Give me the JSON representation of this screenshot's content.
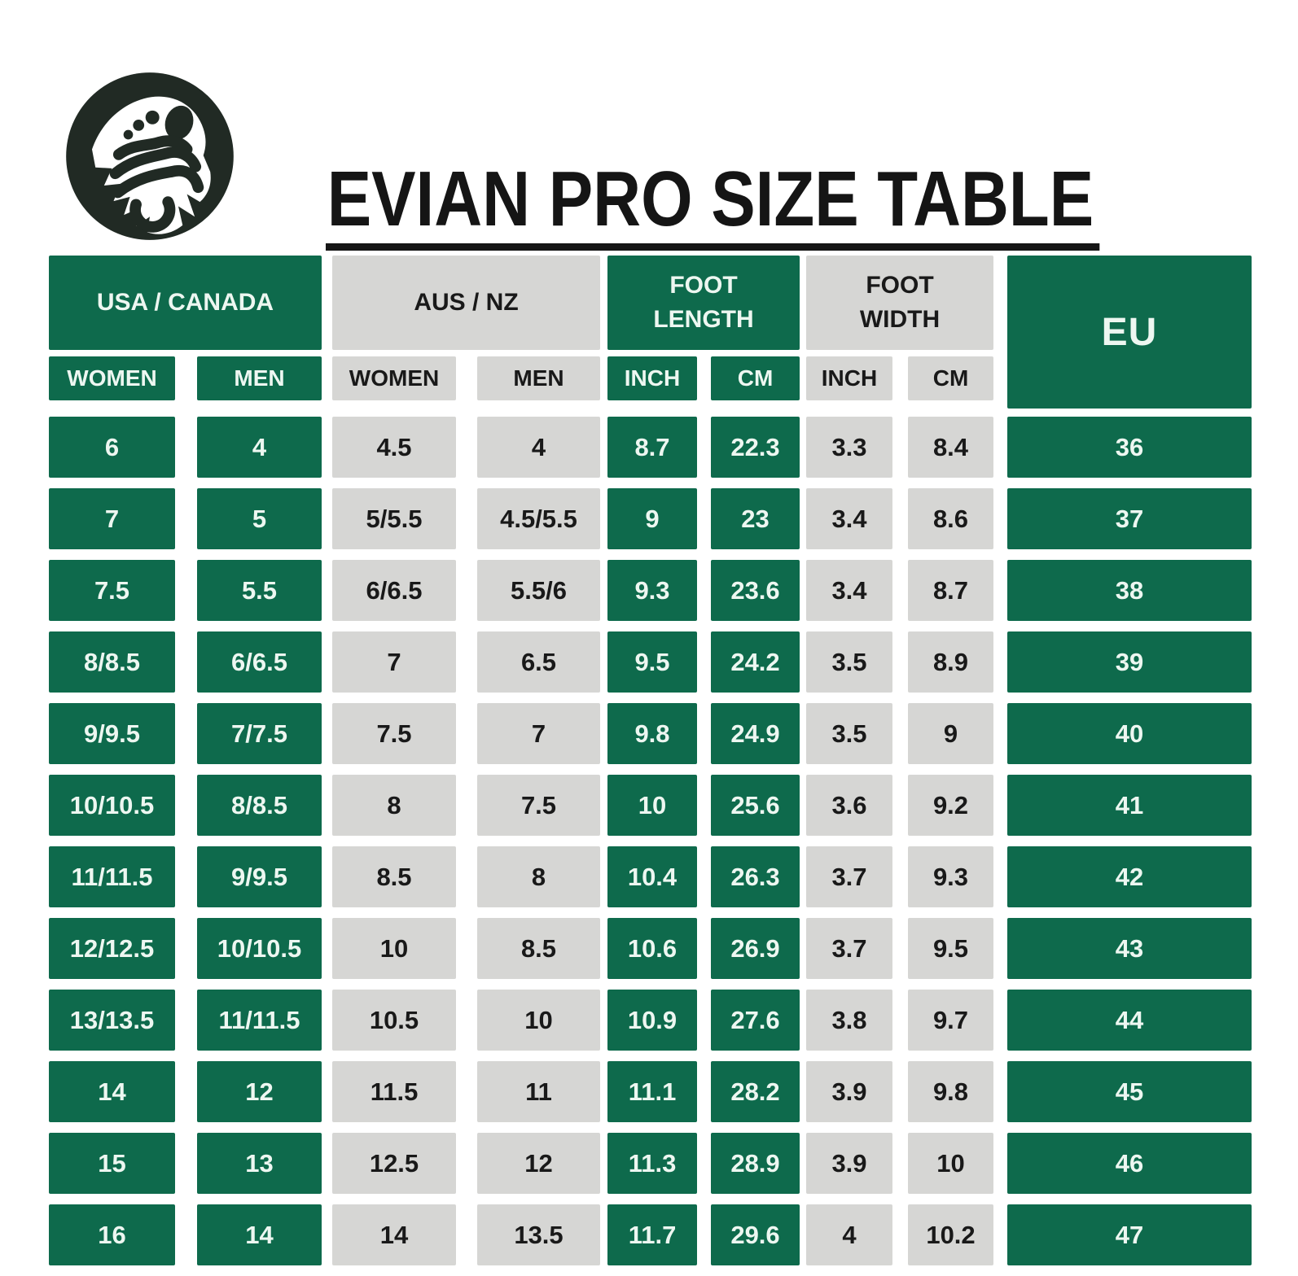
{
  "header": {
    "title": "EVIAN PRO SIZE TABLE",
    "logo_icon": "footprint-mountain-badge-icon"
  },
  "colors": {
    "brand_green": "#0E6A4C",
    "cell_gray": "#D6D6D4",
    "text_on_green": "#EDF7F1",
    "text_on_gray": "#191919",
    "logo_ink": "#212A24",
    "title_ink": "#151515"
  },
  "table": {
    "groups": [
      {
        "label": "USA / CANADA",
        "tone": "green",
        "subheaders": [
          "WOMEN",
          "MEN"
        ]
      },
      {
        "label": "AUS / NZ",
        "tone": "gray",
        "subheaders": [
          "WOMEN",
          "MEN"
        ]
      },
      {
        "label": "FOOT LENGTH",
        "tone": "green",
        "subheaders": [
          "INCH",
          "CM"
        ]
      },
      {
        "label": "FOOT WIDTH",
        "tone": "gray",
        "subheaders": [
          "INCH",
          "CM"
        ]
      },
      {
        "label": "EU",
        "tone": "green",
        "subheaders": []
      }
    ],
    "columns": [
      "USA/CANADA WOMEN",
      "USA/CANADA MEN",
      "AUS/NZ WOMEN",
      "AUS/NZ MEN",
      "FOOT LENGTH INCH",
      "FOOT LENGTH CM",
      "FOOT WIDTH INCH",
      "FOOT WIDTH CM",
      "EU"
    ],
    "rows": [
      [
        "6",
        "4",
        "4.5",
        "4",
        "8.7",
        "22.3",
        "3.3",
        "8.4",
        "36"
      ],
      [
        "7",
        "5",
        "5/5.5",
        "4.5/5.5",
        "9",
        "23",
        "3.4",
        "8.6",
        "37"
      ],
      [
        "7.5",
        "5.5",
        "6/6.5",
        "5.5/6",
        "9.3",
        "23.6",
        "3.4",
        "8.7",
        "38"
      ],
      [
        "8/8.5",
        "6/6.5",
        "7",
        "6.5",
        "9.5",
        "24.2",
        "3.5",
        "8.9",
        "39"
      ],
      [
        "9/9.5",
        "7/7.5",
        "7.5",
        "7",
        "9.8",
        "24.9",
        "3.5",
        "9",
        "40"
      ],
      [
        "10/10.5",
        "8/8.5",
        "8",
        "7.5",
        "10",
        "25.6",
        "3.6",
        "9.2",
        "41"
      ],
      [
        "11/11.5",
        "9/9.5",
        "8.5",
        "8",
        "10.4",
        "26.3",
        "3.7",
        "9.3",
        "42"
      ],
      [
        "12/12.5",
        "10/10.5",
        "10",
        "8.5",
        "10.6",
        "26.9",
        "3.7",
        "9.5",
        "43"
      ],
      [
        "13/13.5",
        "11/11.5",
        "10.5",
        "10",
        "10.9",
        "27.6",
        "3.8",
        "9.7",
        "44"
      ],
      [
        "14",
        "12",
        "11.5",
        "11",
        "11.1",
        "28.2",
        "3.9",
        "9.8",
        "45"
      ],
      [
        "15",
        "13",
        "12.5",
        "12",
        "11.3",
        "28.9",
        "3.9",
        "10",
        "46"
      ],
      [
        "16",
        "14",
        "14",
        "13.5",
        "11.7",
        "29.6",
        "4",
        "10.2",
        "47"
      ]
    ]
  }
}
